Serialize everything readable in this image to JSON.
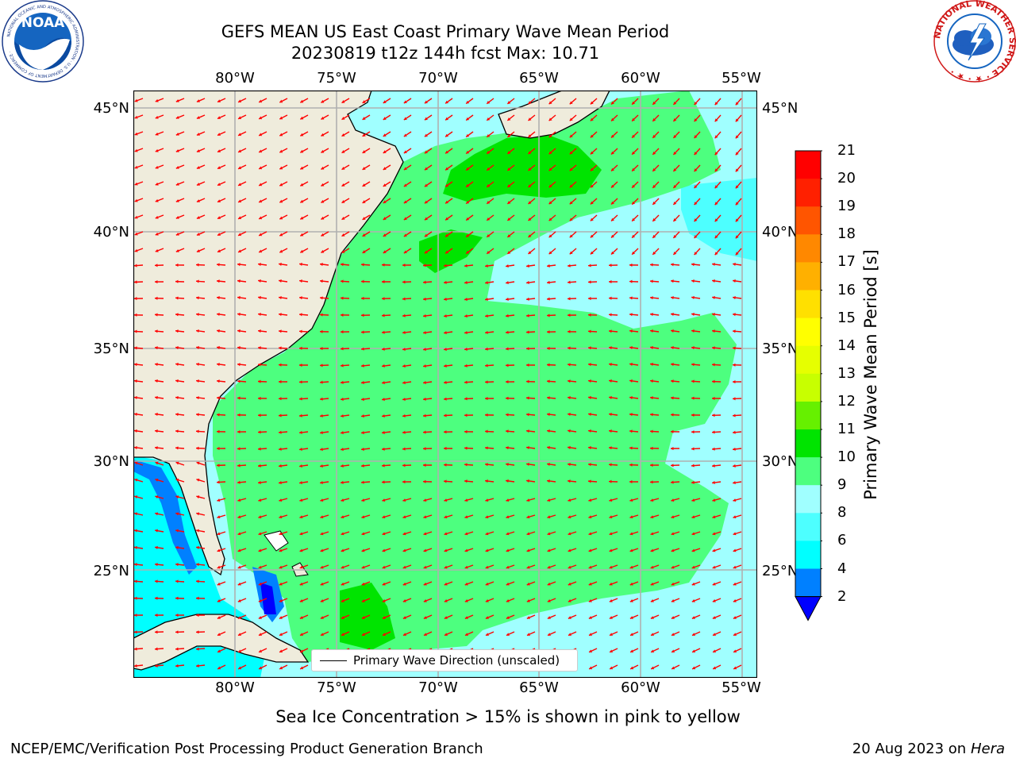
{
  "title": {
    "line1": "GEFS MEAN US East Coast Primary Wave Mean Period",
    "line2": "20230819 t12z 144h fcst   Max: 10.71"
  },
  "logos": {
    "left": {
      "text": "NOAA",
      "ring": "NATIONAL OCEANIC AND ATMOSPHERIC ADMINISTRATION · U.S. DEPARTMENT OF COMMERCE ·"
    },
    "right": {
      "ring": "NATIONAL WEATHER SERVICE · ★ · ★ ·"
    }
  },
  "map": {
    "lon_labels": [
      "80°W",
      "75°W",
      "70°W",
      "65°W",
      "60°W",
      "55°W"
    ],
    "lat_labels": [
      "45°N",
      "40°N",
      "35°N",
      "30°N",
      "25°N"
    ],
    "land_color": "#efecdc",
    "ocean_colors": {
      "green_9_10": "#4dff7f",
      "bright_green_10_11": "#00e400",
      "pale_cyan_8_9": "#a0ffff",
      "cyan_6_8": "#4dffff",
      "cyan_4_6": "#00ffff",
      "blue_2_4": "#0080ff",
      "deep_blue": "#0000ff"
    },
    "arrow_color": "#ff0000",
    "grid_color": "#b0b0b0"
  },
  "legend": {
    "label": "Primary Wave Direction (unscaled)"
  },
  "colorbar": {
    "title": "Primary Wave Mean Period [s]",
    "ticks": [
      "2",
      "4",
      "6",
      "8",
      "9",
      "10",
      "11",
      "12",
      "13",
      "14",
      "15",
      "16",
      "17",
      "18",
      "19",
      "20",
      "21"
    ],
    "colors": [
      "#0000ff",
      "#0080ff",
      "#00ffff",
      "#4dffff",
      "#a0ffff",
      "#4dff7f",
      "#00e400",
      "#66f000",
      "#c8ff00",
      "#e6ff00",
      "#ffff00",
      "#ffe000",
      "#ffb000",
      "#ff8800",
      "#ff5500",
      "#ff2000",
      "#ff0000"
    ]
  },
  "footer": {
    "sea_ice_note": "Sea Ice Concentration > 15% is shown in pink to yellow",
    "branch": "NCEP/EMC/Verification Post Processing Product Generation Branch",
    "date": "20 Aug 2023 on",
    "machine": "Hera"
  }
}
